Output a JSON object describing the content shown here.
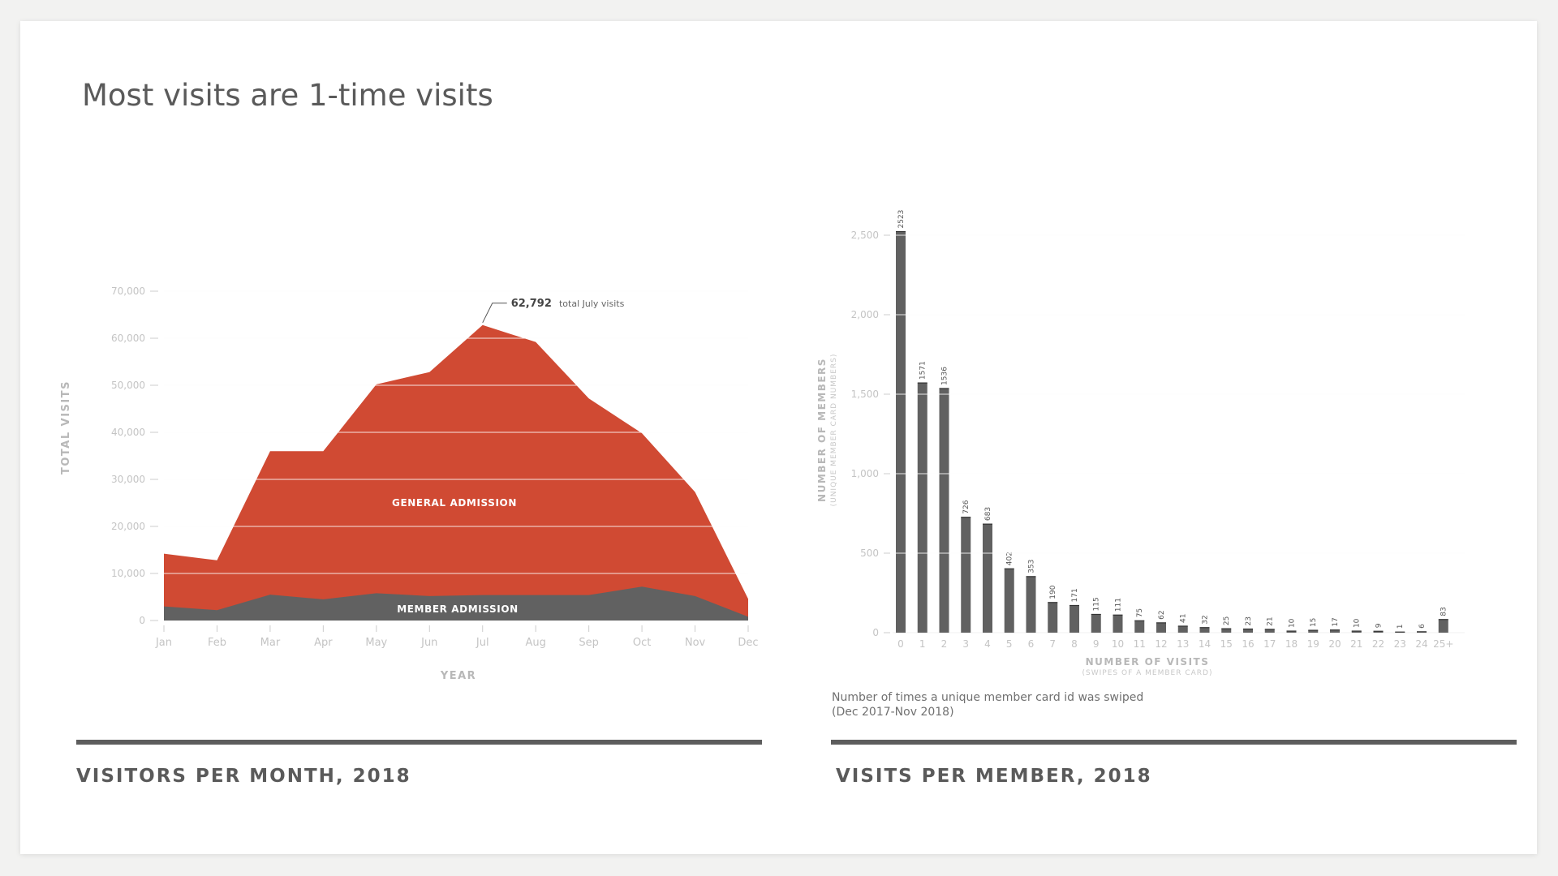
{
  "title": "Most visits are 1-time visits",
  "colors": {
    "general": "#d04a33",
    "member": "#616161",
    "bars": "#616161"
  },
  "footer": {
    "left_title": "VISITORS PER MONTH, 2018",
    "right_title": "VISITS PER MEMBER, 2018"
  },
  "caption": {
    "line1": "Number of times a unique member card id was swiped",
    "line2": "(Dec 2017-Nov 2018)"
  },
  "chart_data": [
    {
      "type": "area",
      "stacked": true,
      "xlabel": "YEAR",
      "ylabel": "TOTAL VISITS",
      "ylim": [
        0,
        70000
      ],
      "yticks": [
        "0",
        "10,000",
        "20,000",
        "30,000",
        "40,000",
        "50,000",
        "60,000",
        "70,000"
      ],
      "categories": [
        "Jan",
        "Feb",
        "Mar",
        "Apr",
        "May",
        "Jun",
        "Jul",
        "Aug",
        "Sep",
        "Oct",
        "Nov",
        "Dec"
      ],
      "series": [
        {
          "name": "MEMBER ADMISSION",
          "values": [
            3000,
            2200,
            5500,
            4500,
            5800,
            5200,
            5400,
            5400,
            5400,
            7200,
            5200,
            800
          ]
        },
        {
          "name": "GENERAL ADMISSION",
          "values": [
            11200,
            10600,
            30500,
            31500,
            44400,
            47600,
            57392,
            53800,
            41800,
            32600,
            22100,
            3800
          ]
        }
      ],
      "annotation": {
        "value": "62,792",
        "text": "total July visits"
      },
      "grid": true
    },
    {
      "type": "bar",
      "xlabel": "NUMBER OF VISITS",
      "xlabel_sub": "(SWIPES OF A MEMBER CARD)",
      "ylabel": "NUMBER OF MEMBERS",
      "ylabel_sub": "(UNIQUE MEMBER CARD NUMBERS)",
      "ylim": [
        0,
        2500
      ],
      "yticks": [
        "0",
        "500",
        "1,000",
        "1,500",
        "2,000",
        "2,500"
      ],
      "categories": [
        "0",
        "1",
        "2",
        "3",
        "4",
        "5",
        "6",
        "7",
        "8",
        "9",
        "10",
        "11",
        "12",
        "13",
        "14",
        "15",
        "16",
        "17",
        "18",
        "19",
        "20",
        "21",
        "22",
        "23",
        "24",
        "25+"
      ],
      "values": [
        2523,
        1571,
        1536,
        726,
        683,
        402,
        353,
        190,
        171,
        115,
        111,
        75,
        62,
        41,
        32,
        25,
        23,
        21,
        10,
        15,
        17,
        10,
        9,
        1,
        6,
        83
      ],
      "grid": true
    }
  ]
}
